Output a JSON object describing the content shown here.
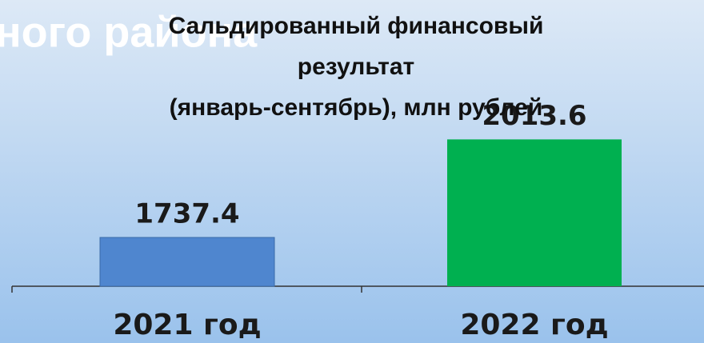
{
  "chart_data": {
    "type": "bar",
    "overlay_text": "ного района",
    "title": [
      "Сальдированный финансовый",
      "результат",
      "(январь-сентябрь), млн рублей"
    ],
    "categories": [
      "2021 год",
      "2022 год"
    ],
    "values": [
      1737.4,
      2013.6
    ],
    "colors": [
      "#4f86cf",
      "#00b050"
    ],
    "ylim": [
      1600,
      2100
    ]
  }
}
